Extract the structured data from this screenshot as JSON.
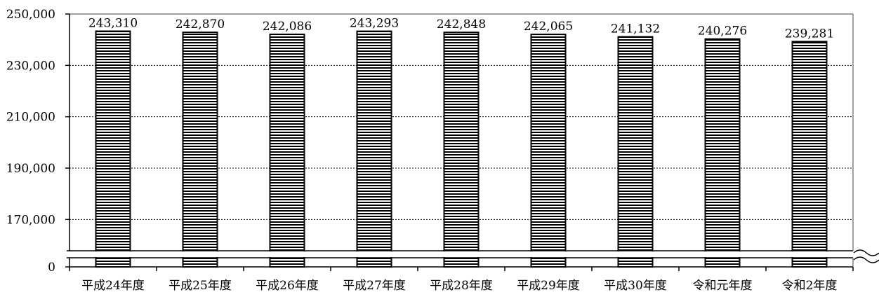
{
  "chart_data": {
    "type": "bar",
    "categories": [
      "平成24年度",
      "平成25年度",
      "平成26年度",
      "平成27年度",
      "平成28年度",
      "平成29年度",
      "平成30年度",
      "令和元年度",
      "令和2年度"
    ],
    "values": [
      243310,
      242870,
      242086,
      243293,
      242848,
      242065,
      241132,
      240276,
      239281
    ],
    "value_labels": [
      "243,310",
      "242,870",
      "242,086",
      "243,293",
      "242,848",
      "242,065",
      "241,132",
      "240,276",
      "239,281"
    ],
    "title": "",
    "xlabel": "",
    "ylabel": "",
    "yticks": [
      250000,
      230000,
      210000,
      190000,
      170000,
      0
    ],
    "ytick_labels": [
      "250,000",
      "230,000",
      "210,000",
      "190,000",
      "170,000",
      "0"
    ],
    "ylim": [
      0,
      250000
    ],
    "axis_break": true,
    "grid": "horizontal dotted",
    "legend": "none",
    "bar_fill": "horizontal stripes",
    "colors": {
      "bar_stroke": "#000000",
      "stripe": "#000000",
      "grid": "#000000",
      "frame": "#808080"
    }
  }
}
